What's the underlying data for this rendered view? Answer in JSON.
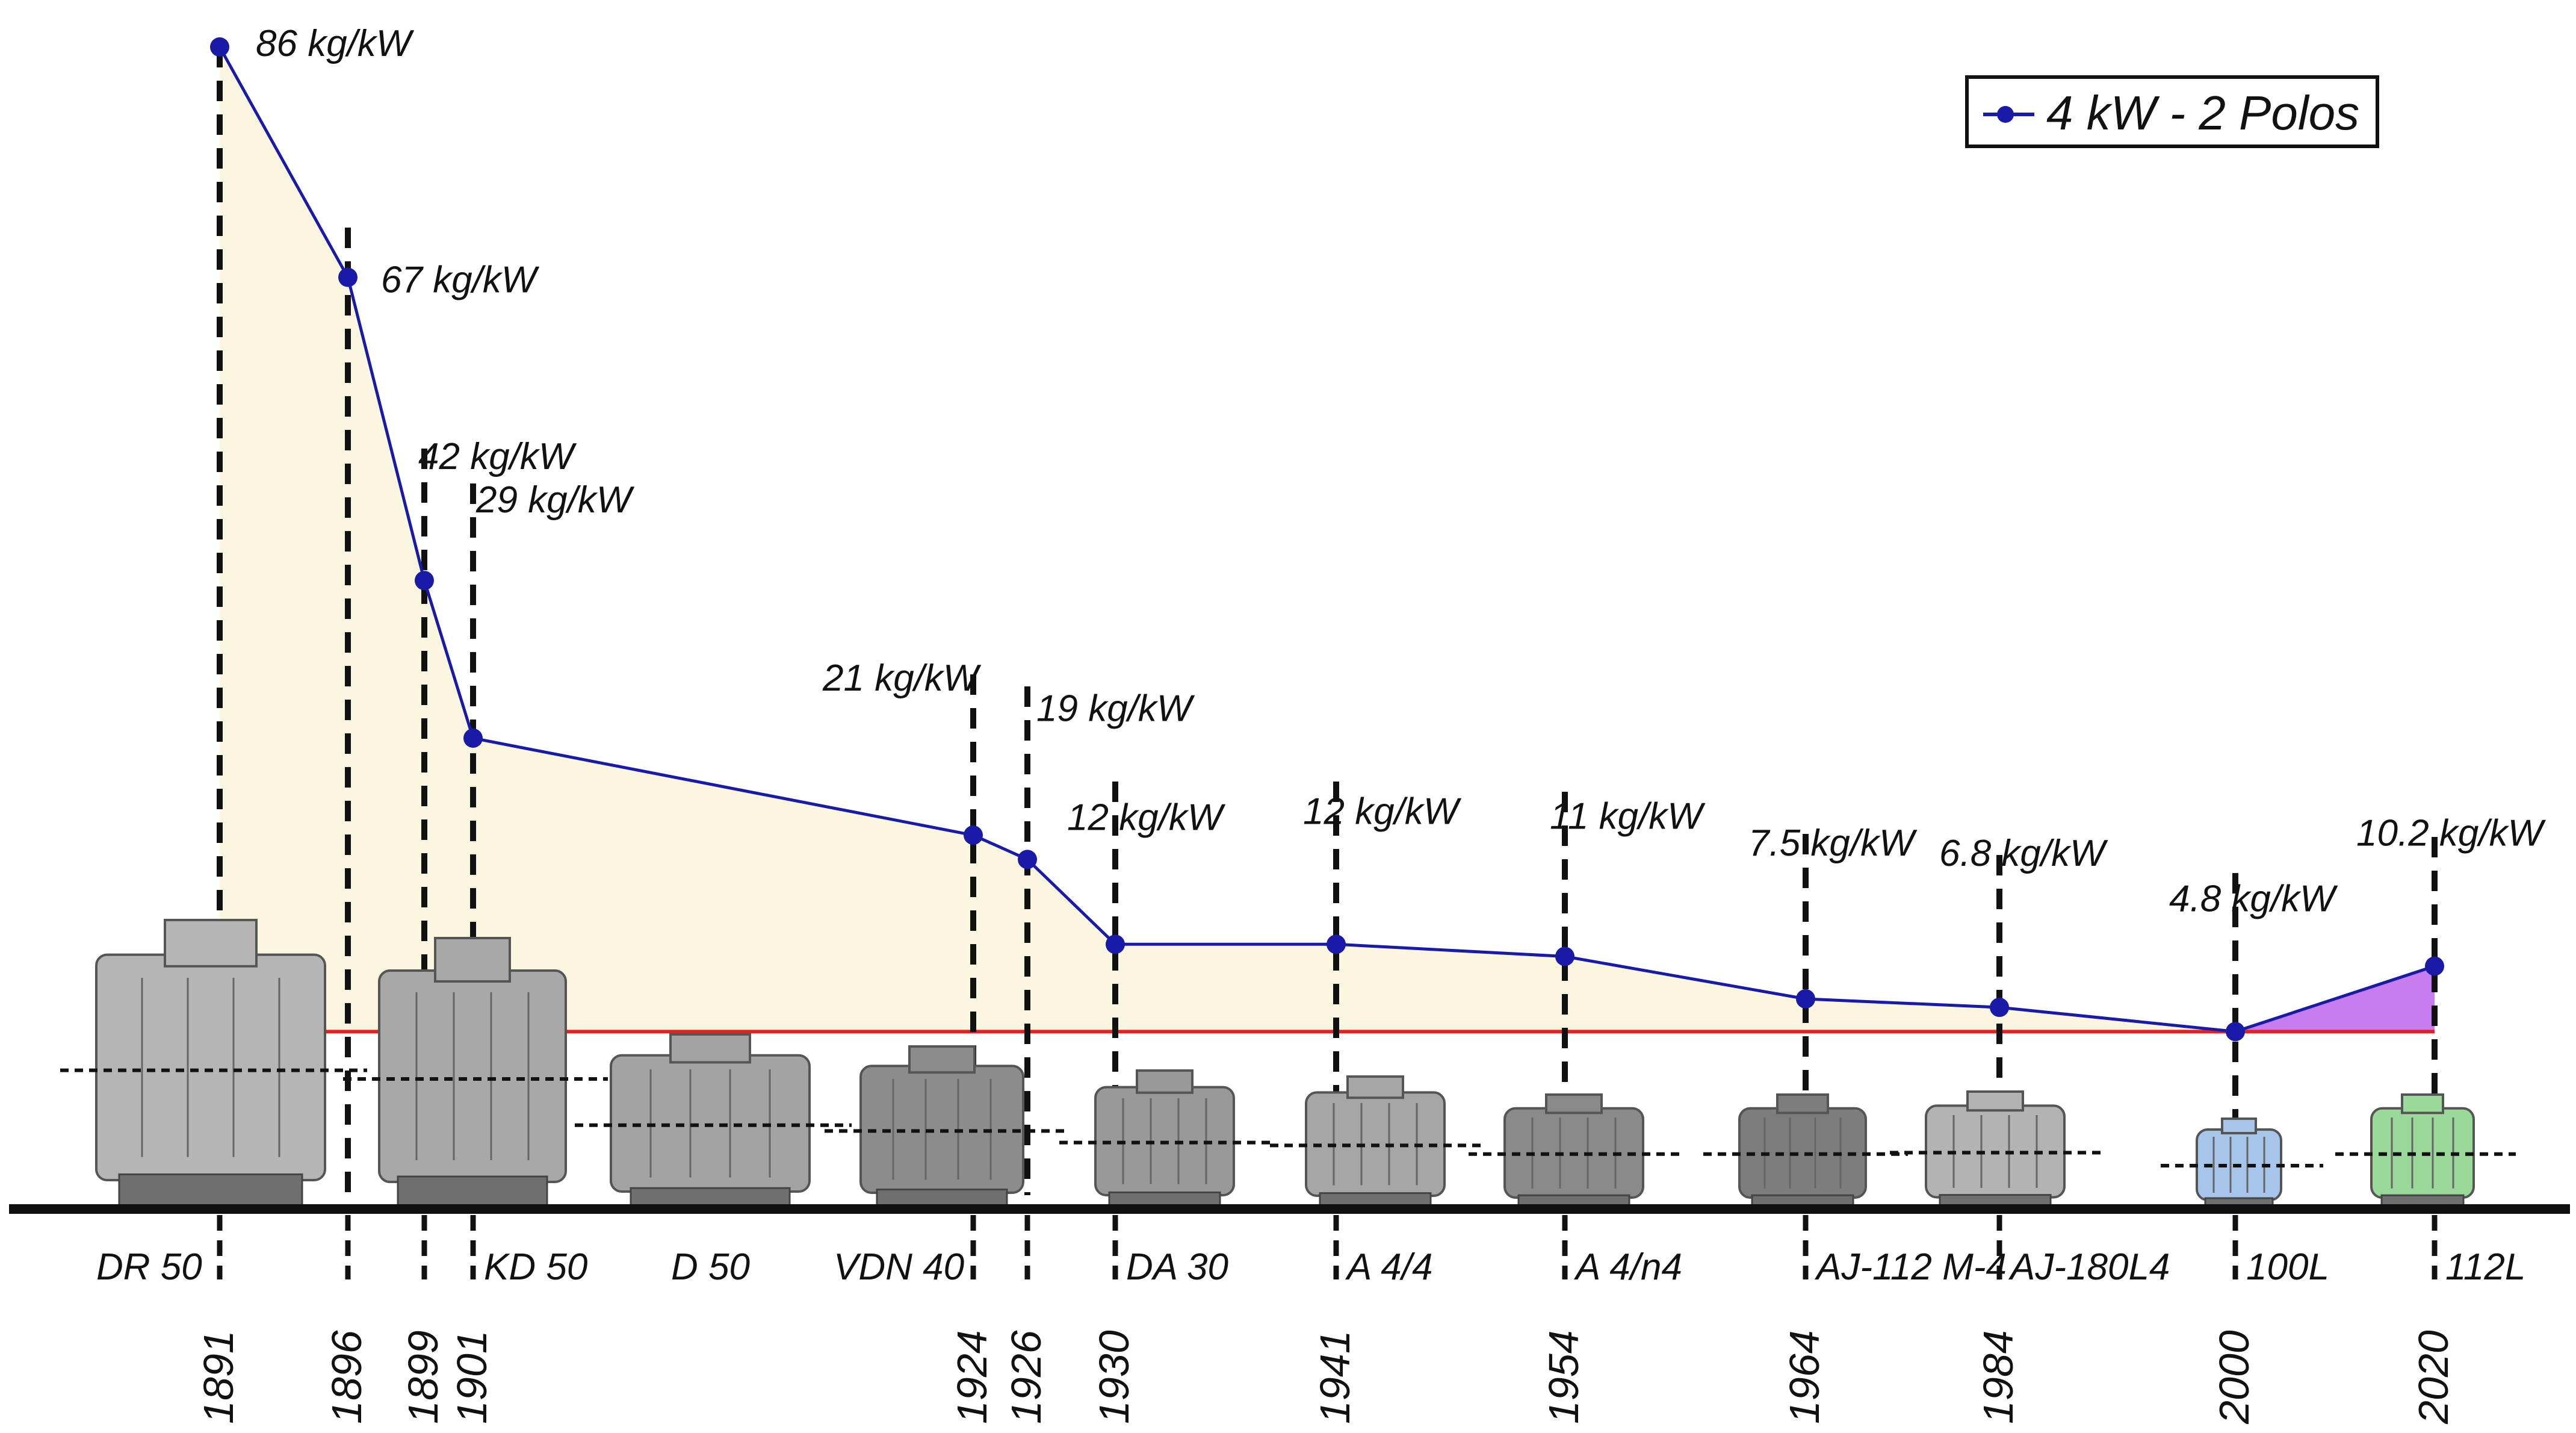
{
  "chart_data": {
    "type": "line",
    "title": "",
    "xlabel": "",
    "ylabel": "",
    "unit": "kg/kW",
    "ylim": [
      0,
      86
    ],
    "legend": {
      "label": "4 kW - 2 Polos",
      "position": "top-right"
    },
    "reference_value": 4.8,
    "colors": {
      "line": "#1a1aa8",
      "marker": "#1a1aa8",
      "area": "#fbf6e0",
      "increase_area": "#c77cf0",
      "reference": "#e52020",
      "axis": "#111111"
    },
    "points": [
      {
        "year": "1891",
        "value": 86,
        "label": "86 kg/kW",
        "model": "DR 50"
      },
      {
        "year": "1896",
        "value": 67,
        "label": "67 kg/kW",
        "model": ""
      },
      {
        "year": "1899",
        "value": 42,
        "label": "42 kg/kW",
        "model": ""
      },
      {
        "year": "1901",
        "value": 29,
        "label": "29 kg/kW",
        "model": "KD 50"
      },
      {
        "year": "1924",
        "value": 21,
        "label": "21 kg/kW",
        "model": "VDN 40"
      },
      {
        "year": "1926",
        "value": 19,
        "label": "19 kg/kW",
        "model": ""
      },
      {
        "year": "1930",
        "value": 12,
        "label": "12 kg/kW",
        "model": "DA 30"
      },
      {
        "year": "1941",
        "value": 12,
        "label": "12 kg/kW",
        "model": "A 4/4"
      },
      {
        "year": "1954",
        "value": 11,
        "label": "11 kg/kW",
        "model": "A 4/n4"
      },
      {
        "year": "1964",
        "value": 7.5,
        "label": "7.5 kg/kW",
        "model": "AJ-112 M-4"
      },
      {
        "year": "1984",
        "value": 6.8,
        "label": "6.8 kg/kW",
        "model": "AJ-180L4"
      },
      {
        "year": "2000",
        "value": 4.8,
        "label": "4.8 kg/kW",
        "model": "100L"
      },
      {
        "year": "2020",
        "value": 10.2,
        "label": "10.2 kg/kW",
        "model": "112L"
      }
    ],
    "extra_models": [
      {
        "model": "D 50"
      }
    ]
  }
}
